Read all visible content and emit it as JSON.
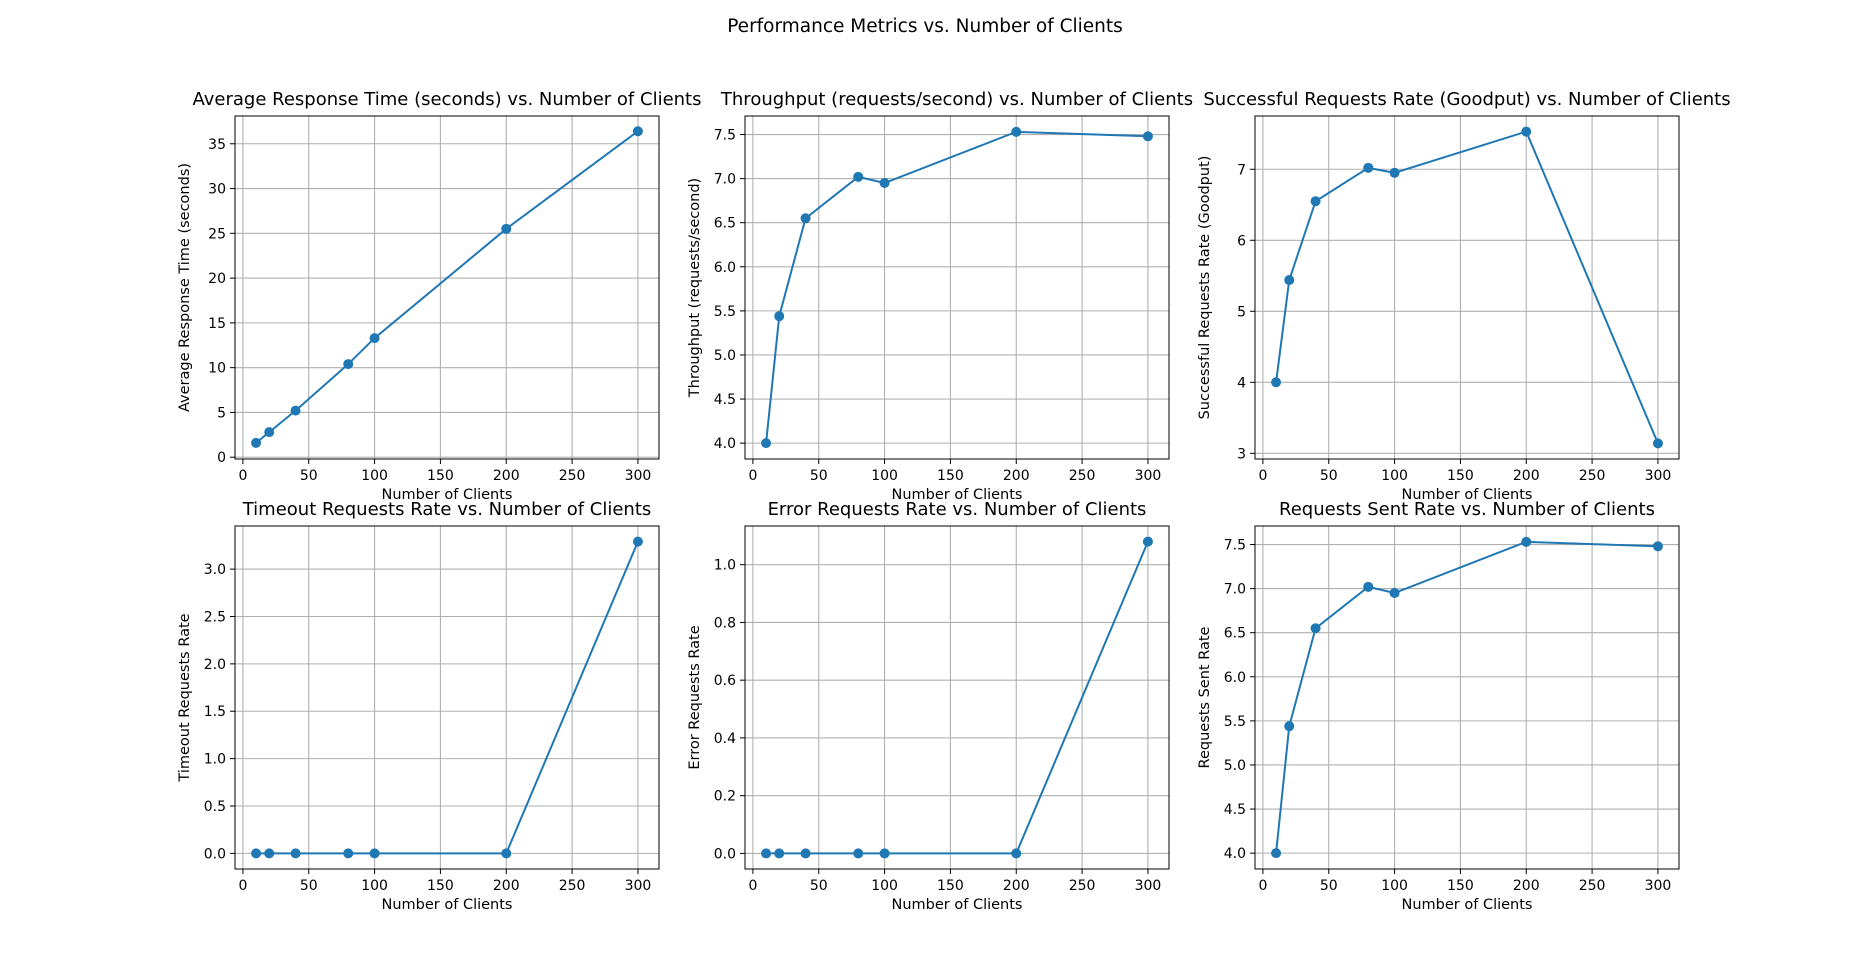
{
  "title": "Performance Metrics vs. Number of Clients",
  "colors": {
    "series": "#1f77b4",
    "grid": "#b0b0b0"
  },
  "chart_data": [
    {
      "type": "line",
      "title": "Average Response Time (seconds) vs. Number of Clients",
      "xlabel": "Number of Clients",
      "ylabel": "Average Response Time (seconds)",
      "x": [
        10,
        20,
        40,
        80,
        100,
        200,
        300
      ],
      "y": [
        1.6,
        2.8,
        5.2,
        10.4,
        13.3,
        25.5,
        36.4
      ],
      "xlim": [
        -6,
        316
      ],
      "ylim": [
        -0.2,
        38.1
      ],
      "xticks": [
        0,
        50,
        100,
        150,
        200,
        250,
        300
      ],
      "yticks": [
        0,
        5,
        10,
        15,
        20,
        25,
        30,
        35
      ],
      "tick_labels_x": [
        "0",
        "50",
        "100",
        "150",
        "200",
        "250",
        "300"
      ],
      "tick_labels_y": [
        "0",
        "5",
        "10",
        "15",
        "20",
        "25",
        "30",
        "35"
      ],
      "grid": true,
      "marker": "circle"
    },
    {
      "type": "line",
      "title": "Throughput (requests/second) vs. Number of Clients",
      "xlabel": "Number of Clients",
      "ylabel": "Throughput (requests/second)",
      "x": [
        10,
        20,
        40,
        80,
        100,
        200,
        300
      ],
      "y": [
        4.0,
        5.44,
        6.55,
        7.02,
        6.95,
        7.53,
        7.48
      ],
      "xlim": [
        -6,
        316
      ],
      "ylim": [
        3.82,
        7.71
      ],
      "xticks": [
        0,
        50,
        100,
        150,
        200,
        250,
        300
      ],
      "yticks": [
        4.0,
        4.5,
        5.0,
        5.5,
        6.0,
        6.5,
        7.0,
        7.5
      ],
      "tick_labels_x": [
        "0",
        "50",
        "100",
        "150",
        "200",
        "250",
        "300"
      ],
      "tick_labels_y": [
        "4.0",
        "4.5",
        "5.0",
        "5.5",
        "6.0",
        "6.5",
        "7.0",
        "7.5"
      ],
      "grid": true,
      "marker": "circle"
    },
    {
      "type": "line",
      "title": "Successful Requests Rate (Goodput) vs. Number of Clients",
      "xlabel": "Number of Clients",
      "ylabel": "Successful Requests Rate (Goodput)",
      "x": [
        10,
        20,
        40,
        80,
        100,
        200,
        300
      ],
      "y": [
        4.0,
        5.44,
        6.55,
        7.02,
        6.95,
        7.53,
        3.14
      ],
      "xlim": [
        -6,
        316
      ],
      "ylim": [
        2.92,
        7.75
      ],
      "xticks": [
        0,
        50,
        100,
        150,
        200,
        250,
        300
      ],
      "yticks": [
        3,
        4,
        5,
        6,
        7
      ],
      "tick_labels_x": [
        "0",
        "50",
        "100",
        "150",
        "200",
        "250",
        "300"
      ],
      "tick_labels_y": [
        "3",
        "4",
        "5",
        "6",
        "7"
      ],
      "grid": true,
      "marker": "circle"
    },
    {
      "type": "line",
      "title": "Timeout Requests Rate vs. Number of Clients",
      "xlabel": "Number of Clients",
      "ylabel": "Timeout Requests Rate",
      "x": [
        10,
        20,
        40,
        80,
        100,
        200,
        300
      ],
      "y": [
        0,
        0,
        0,
        0,
        0,
        0,
        3.29
      ],
      "xlim": [
        -6,
        316
      ],
      "ylim": [
        -0.165,
        3.455
      ],
      "xticks": [
        0,
        50,
        100,
        150,
        200,
        250,
        300
      ],
      "yticks": [
        0.0,
        0.5,
        1.0,
        1.5,
        2.0,
        2.5,
        3.0
      ],
      "tick_labels_x": [
        "0",
        "50",
        "100",
        "150",
        "200",
        "250",
        "300"
      ],
      "tick_labels_y": [
        "0.0",
        "0.5",
        "1.0",
        "1.5",
        "2.0",
        "2.5",
        "3.0"
      ],
      "grid": true,
      "marker": "circle"
    },
    {
      "type": "line",
      "title": "Error Requests Rate vs. Number of Clients",
      "xlabel": "Number of Clients",
      "ylabel": "Error Requests Rate",
      "x": [
        10,
        20,
        40,
        80,
        100,
        200,
        300
      ],
      "y": [
        0,
        0,
        0,
        0,
        0,
        0,
        1.08
      ],
      "xlim": [
        -6,
        316
      ],
      "ylim": [
        -0.054,
        1.134
      ],
      "xticks": [
        0,
        50,
        100,
        150,
        200,
        250,
        300
      ],
      "yticks": [
        0.0,
        0.2,
        0.4,
        0.6,
        0.8,
        1.0
      ],
      "tick_labels_x": [
        "0",
        "50",
        "100",
        "150",
        "200",
        "250",
        "300"
      ],
      "tick_labels_y": [
        "0.0",
        "0.2",
        "0.4",
        "0.6",
        "0.8",
        "1.0"
      ],
      "grid": true,
      "marker": "circle"
    },
    {
      "type": "line",
      "title": "Requests Sent Rate vs. Number of Clients",
      "xlabel": "Number of Clients",
      "ylabel": "Requests Sent Rate",
      "x": [
        10,
        20,
        40,
        80,
        100,
        200,
        300
      ],
      "y": [
        4.0,
        5.44,
        6.55,
        7.02,
        6.95,
        7.53,
        7.48
      ],
      "xlim": [
        -6,
        316
      ],
      "ylim": [
        3.82,
        7.71
      ],
      "xticks": [
        0,
        50,
        100,
        150,
        200,
        250,
        300
      ],
      "yticks": [
        4.0,
        4.5,
        5.0,
        5.5,
        6.0,
        6.5,
        7.0,
        7.5
      ],
      "tick_labels_x": [
        "0",
        "50",
        "100",
        "150",
        "200",
        "250",
        "300"
      ],
      "tick_labels_y": [
        "4.0",
        "4.5",
        "5.0",
        "5.5",
        "6.0",
        "6.5",
        "7.0",
        "7.5"
      ],
      "grid": true,
      "marker": "circle"
    }
  ]
}
